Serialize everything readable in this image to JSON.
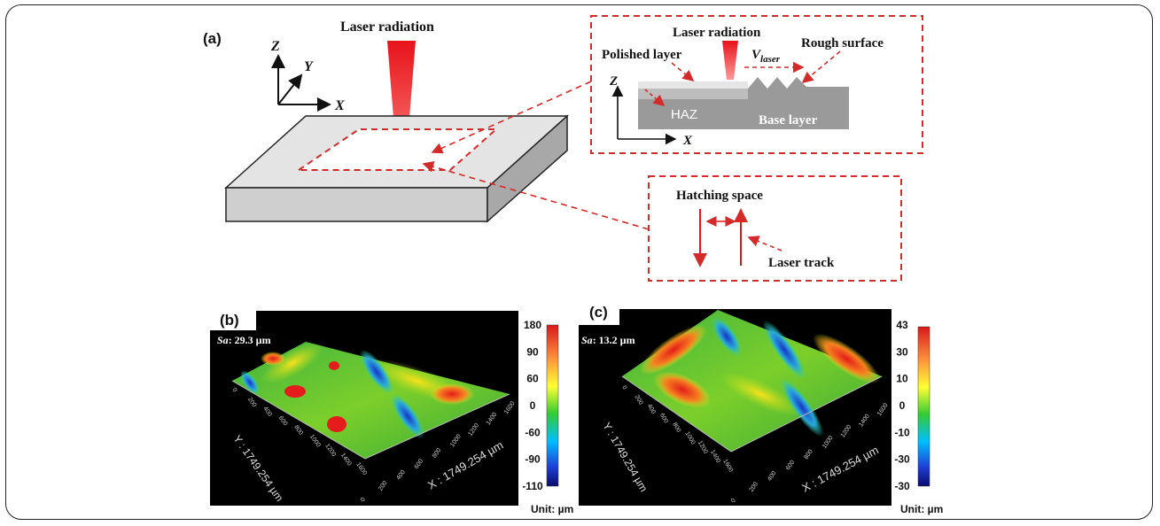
{
  "panel_a": {
    "label": "(a)",
    "laser_label": "Laser radiation",
    "axes": {
      "z": "Z",
      "y": "Y",
      "x": "X"
    },
    "inset_cross_section": {
      "laser_label": "Laser radiation",
      "polished_layer": "Polished layer",
      "v_laser": "V",
      "v_laser_sub": "laser",
      "rough_surface": "Rough surface",
      "haz": "HAZ",
      "base_layer": "Base layer",
      "axis_z": "Z",
      "axis_x": "X"
    },
    "inset_hatching": {
      "hatching_space": "Hatching space",
      "laser_track": "Laser track"
    },
    "colors": {
      "laser": "#e8131b",
      "dashed": "#d42a2a",
      "block": "#e3e3e3"
    }
  },
  "panel_b": {
    "label": "(b)",
    "sa_label": "Sa",
    "sa_value": ": 29.3 µm",
    "y_axis_label": "Y : 1749.254 µm",
    "x_axis_label": "X : 1749.254 µm",
    "x_ticks": [
      "0",
      "200",
      "400",
      "600",
      "800",
      "1000",
      "1200",
      "1400",
      "1600"
    ],
    "y_ticks": [
      "0",
      "200",
      "400",
      "600",
      "800",
      "1000",
      "1200",
      "1400",
      "1600"
    ],
    "colorbar_ticks": [
      "180",
      "90",
      "60",
      "0",
      "-60",
      "-90",
      "-110"
    ],
    "unit": "Unit: µm"
  },
  "panel_c": {
    "label": "(c)",
    "sa_label": "Sa",
    "sa_value": ": 13.2 µm",
    "y_axis_label": "Y : 1749.254 µm",
    "x_axis_label": "X : 1749.254 µm",
    "x_ticks": [
      "0",
      "200",
      "400",
      "600",
      "800",
      "1000",
      "1200",
      "1400",
      "1600"
    ],
    "y_ticks": [
      "0",
      "200",
      "400",
      "600",
      "800",
      "1000",
      "1200",
      "1400",
      "1600"
    ],
    "colorbar_ticks": [
      "43",
      "30",
      "10",
      "0",
      "-10",
      "-30",
      "-30"
    ],
    "unit": "Unit: µm"
  }
}
